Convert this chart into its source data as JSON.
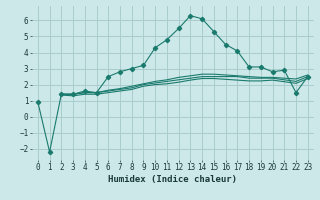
{
  "title": "",
  "xlabel": "Humidex (Indice chaleur)",
  "ylabel": "",
  "background_color": "#cce8e8",
  "grid_color": "#aacccc",
  "line_color": "#1a7a6e",
  "xlim": [
    -0.5,
    23.5
  ],
  "ylim": [
    -2.7,
    6.9
  ],
  "yticks": [
    -2,
    -1,
    0,
    1,
    2,
    3,
    4,
    5,
    6
  ],
  "xticks": [
    0,
    1,
    2,
    3,
    4,
    5,
    6,
    7,
    8,
    9,
    10,
    11,
    12,
    13,
    14,
    15,
    16,
    17,
    18,
    19,
    20,
    21,
    22,
    23
  ],
  "series1_x": [
    0,
    1,
    2,
    3,
    4,
    5,
    6,
    7,
    8,
    9,
    10,
    11,
    12,
    13,
    14,
    15,
    16,
    17,
    18,
    19,
    20,
    21,
    22,
    23
  ],
  "series1_y": [
    0.9,
    -2.2,
    1.4,
    1.4,
    1.6,
    1.5,
    2.5,
    2.8,
    3.0,
    3.2,
    4.3,
    4.8,
    5.5,
    6.3,
    6.1,
    5.3,
    4.5,
    4.1,
    3.1,
    3.1,
    2.8,
    2.9,
    1.5,
    2.5
  ],
  "series2_x": [
    2,
    3,
    4,
    5,
    6,
    7,
    8,
    9,
    10,
    11,
    12,
    13,
    14,
    15,
    16,
    17,
    18,
    19,
    20,
    21,
    22,
    23
  ],
  "series2_y": [
    1.4,
    1.4,
    1.5,
    1.5,
    1.6,
    1.7,
    1.8,
    2.0,
    2.1,
    2.2,
    2.3,
    2.4,
    2.5,
    2.5,
    2.5,
    2.5,
    2.4,
    2.4,
    2.4,
    2.3,
    2.2,
    2.5
  ],
  "series3_x": [
    2,
    3,
    4,
    5,
    6,
    7,
    8,
    9,
    10,
    11,
    12,
    13,
    14,
    15,
    16,
    17,
    18,
    19,
    20,
    21,
    22,
    23
  ],
  "series3_y": [
    1.4,
    1.4,
    1.5,
    1.5,
    1.65,
    1.75,
    1.9,
    2.05,
    2.2,
    2.3,
    2.45,
    2.55,
    2.65,
    2.65,
    2.6,
    2.55,
    2.5,
    2.45,
    2.45,
    2.4,
    2.35,
    2.6
  ],
  "series4_x": [
    2,
    3,
    4,
    5,
    6,
    7,
    8,
    9,
    10,
    11,
    12,
    13,
    14,
    15,
    16,
    17,
    18,
    19,
    20,
    21,
    22,
    23
  ],
  "series4_y": [
    1.35,
    1.3,
    1.4,
    1.4,
    1.5,
    1.6,
    1.7,
    1.9,
    2.0,
    2.05,
    2.15,
    2.28,
    2.38,
    2.38,
    2.33,
    2.28,
    2.23,
    2.23,
    2.28,
    2.18,
    2.08,
    2.38
  ]
}
